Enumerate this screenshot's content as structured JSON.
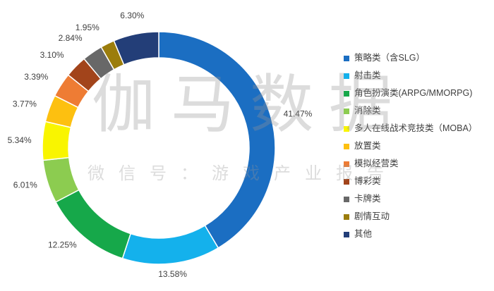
{
  "chart_data": {
    "type": "pie",
    "style": "donut",
    "categories": [
      "策略类（含SLG）",
      "射击类",
      "角色扮演类(ARPG/MMORPG)",
      "消除类",
      "多人在线战术竞技类（MOBA）",
      "放置类",
      "模拟经营类",
      "博彩类",
      "卡牌类",
      "剧情互动",
      "其他"
    ],
    "values": [
      41.47,
      13.58,
      12.25,
      6.01,
      5.34,
      3.77,
      3.39,
      3.1,
      2.84,
      1.95,
      6.3
    ],
    "unit": "%",
    "colors": [
      "#1b6ec2",
      "#14b1ec",
      "#16a84a",
      "#8ccc50",
      "#f9f500",
      "#fdc010",
      "#ee7c34",
      "#a2441b",
      "#686868",
      "#9b7d0c",
      "#233e78"
    ],
    "legend": "right"
  },
  "watermark": {
    "main": "伽马数据",
    "sub": "微信号：游戏产业报告"
  }
}
